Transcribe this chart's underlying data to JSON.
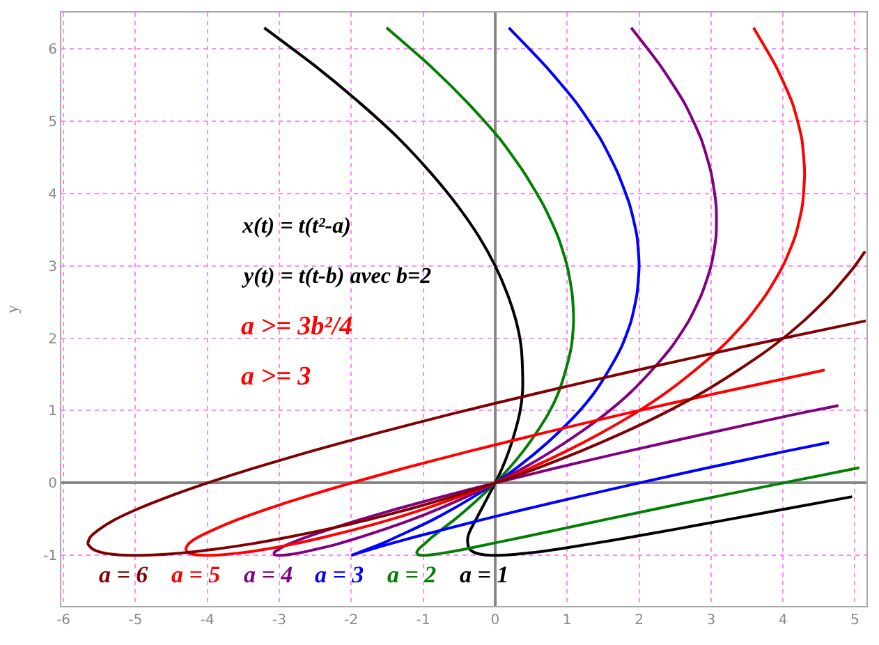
{
  "chart_data": {
    "type": "line",
    "ylabel": "y",
    "annotations": [
      "x(t) = t(t²-a)",
      "y(t) = t(t-b) avec b=2",
      "a >= 3b²/4",
      "a >= 3"
    ],
    "xlim": [
      -6.03,
      5.16
    ],
    "ylim": [
      -1.7,
      6.5
    ],
    "xticks": [
      -6,
      -5,
      -4,
      -3,
      -2,
      -1,
      0,
      1,
      2,
      3,
      4,
      5
    ],
    "yticks": [
      -1,
      0,
      1,
      2,
      3,
      4,
      5,
      6
    ],
    "grid": true,
    "legend": false,
    "marker": "none",
    "line_style": "solid",
    "series": [
      {
        "name": "a = 1",
        "color": "#000000",
        "x": [
          -3.21,
          -2.5,
          -1.88,
          -1.34,
          -0.9,
          -0.53,
          -0.23,
          0,
          0.17,
          0.29,
          0.36,
          0.38,
          0.38,
          0.34,
          0.27,
          0.19,
          0.1,
          0,
          -0.1,
          -0.19,
          -0.27,
          -0.34,
          -0.38,
          -0.38,
          -0.36,
          -0.29,
          -0.17,
          0,
          0.23,
          0.53,
          0.9,
          1.34,
          1.88,
          2.5,
          3.21,
          4.03,
          4.96
        ],
        "values": [
          6.29,
          5.76,
          5.25,
          4.76,
          4.29,
          3.84,
          3.41,
          3,
          2.61,
          2.24,
          1.89,
          1.56,
          1.25,
          0.96,
          0.69,
          0.44,
          0.21,
          0,
          -0.19,
          -0.36,
          -0.51,
          -0.64,
          -0.75,
          -0.84,
          -0.91,
          -0.96,
          -0.99,
          -1,
          -0.99,
          -0.96,
          -0.91,
          -0.84,
          -0.75,
          -0.64,
          -0.51,
          -0.36,
          -0.19
        ]
      },
      {
        "name": "a = 2",
        "color": "#008000",
        "x": [
          -1.51,
          -0.9,
          -0.38,
          0.06,
          0.4,
          0.67,
          0.87,
          1,
          1.07,
          1.09,
          1.06,
          0.98,
          0.88,
          0.74,
          0.57,
          0.39,
          0.2,
          0,
          -0.2,
          -0.39,
          -0.57,
          -0.74,
          -0.88,
          -0.98,
          -1.06,
          -1.09,
          -1.07,
          -1,
          -0.87,
          -0.67,
          -0.4,
          -0.06,
          0.38,
          0.9,
          1.51,
          2.23,
          3.06,
          4,
          5.06
        ],
        "values": [
          6.29,
          5.76,
          5.25,
          4.76,
          4.29,
          3.84,
          3.41,
          3,
          2.61,
          2.24,
          1.89,
          1.56,
          1.25,
          0.96,
          0.69,
          0.44,
          0.21,
          0,
          -0.19,
          -0.36,
          -0.51,
          -0.64,
          -0.75,
          -0.84,
          -0.91,
          -0.96,
          -0.99,
          -1,
          -0.99,
          -0.96,
          -0.91,
          -0.84,
          -0.75,
          -0.64,
          -0.51,
          -0.36,
          -0.19,
          0,
          0.21
        ]
      },
      {
        "name": "a = 3",
        "color": "#0000ff",
        "x": [
          0.19,
          0.7,
          1.13,
          1.46,
          1.7,
          1.87,
          1.97,
          2,
          1.97,
          1.89,
          1.76,
          1.58,
          1.38,
          1.14,
          0.87,
          0.59,
          0.3,
          0,
          -0.3,
          -0.59,
          -0.87,
          -1.14,
          -1.38,
          -1.58,
          -1.76,
          -1.89,
          -1.97,
          -2,
          -1.97,
          -1.87,
          -1.7,
          -1.46,
          -1.13,
          -0.7,
          -0.19,
          0.43,
          1.16,
          2,
          2.96,
          4.05,
          4.64
        ],
        "values": [
          6.29,
          5.76,
          5.25,
          4.76,
          4.29,
          3.84,
          3.41,
          3,
          2.61,
          2.24,
          1.89,
          1.56,
          1.25,
          0.96,
          0.69,
          0.44,
          0.21,
          0,
          -0.19,
          -0.36,
          -0.51,
          -0.64,
          -0.75,
          -0.84,
          -0.91,
          -0.96,
          -0.99,
          -1,
          -0.99,
          -0.96,
          -0.91,
          -0.84,
          -0.75,
          -0.64,
          -0.51,
          -0.36,
          -0.19,
          0,
          0.21,
          0.44,
          0.56
        ]
      },
      {
        "name": "a = 4",
        "color": "#800080",
        "x": [
          1.89,
          2.3,
          2.63,
          2.86,
          3,
          3.07,
          3.07,
          3,
          2.87,
          2.69,
          2.46,
          2.18,
          1.88,
          1.54,
          1.17,
          0.79,
          0.4,
          0,
          -0.4,
          -0.79,
          -1.17,
          -1.54,
          -1.88,
          -2.18,
          -2.46,
          -2.69,
          -2.87,
          -3,
          -3.07,
          -3.07,
          -3,
          -2.86,
          -2.63,
          -2.3,
          -1.89,
          -1.37,
          -0.74,
          0,
          0.86,
          1.85,
          2.97,
          4.22,
          4.77
        ],
        "values": [
          6.29,
          5.76,
          5.25,
          4.76,
          4.29,
          3.84,
          3.41,
          3,
          2.61,
          2.24,
          1.89,
          1.56,
          1.25,
          0.96,
          0.69,
          0.44,
          0.21,
          0,
          -0.19,
          -0.36,
          -0.51,
          -0.64,
          -0.75,
          -0.84,
          -0.91,
          -0.96,
          -0.99,
          -1,
          -0.99,
          -0.96,
          -0.91,
          -0.84,
          -0.75,
          -0.64,
          -0.51,
          -0.36,
          -0.19,
          0,
          0.21,
          0.44,
          0.69,
          0.96,
          1.07
        ]
      },
      {
        "name": "a = 5",
        "color": "#ff0000",
        "x": [
          3.59,
          3.9,
          4.13,
          4.26,
          4.3,
          4.27,
          4.17,
          4,
          3.77,
          3.49,
          3.16,
          2.78,
          2.38,
          1.94,
          1.47,
          0.99,
          0.5,
          0,
          -0.5,
          -0.99,
          -1.47,
          -1.94,
          -2.38,
          -2.78,
          -3.16,
          -3.49,
          -3.77,
          -4,
          -4.17,
          -4.27,
          -4.3,
          -4.26,
          -4.13,
          -3.9,
          -3.59,
          -3.17,
          -2.64,
          -2,
          -1.24,
          -0.35,
          0.67,
          1.82,
          3.13,
          4.58
        ],
        "values": [
          6.29,
          5.76,
          5.25,
          4.76,
          4.29,
          3.84,
          3.41,
          3,
          2.61,
          2.24,
          1.89,
          1.56,
          1.25,
          0.96,
          0.69,
          0.44,
          0.21,
          0,
          -0.19,
          -0.36,
          -0.51,
          -0.64,
          -0.75,
          -0.84,
          -0.91,
          -0.96,
          -0.99,
          -1,
          -0.99,
          -0.96,
          -0.91,
          -0.84,
          -0.75,
          -0.64,
          -0.51,
          -0.36,
          -0.19,
          0,
          0.21,
          0.44,
          0.69,
          0.96,
          1.25,
          1.56
        ]
      },
      {
        "name": "a = 6",
        "color": "#800000",
        "x": [
          5.14,
          5,
          4.67,
          4.29,
          3.86,
          3.38,
          2.88,
          2.34,
          1.77,
          1.19,
          0.6,
          0,
          -0.6,
          -1.19,
          -1.77,
          -2.34,
          -2.88,
          -3.38,
          -3.86,
          -4.29,
          -4.67,
          -5,
          -5.27,
          -5.47,
          -5.6,
          -5.66,
          -5.63,
          -5.5,
          -5.29,
          -4.97,
          -4.54,
          -4,
          -3.34,
          -2.55,
          -1.63,
          -0.58,
          0.63,
          1.98,
          3.48,
          5.15
        ],
        "values": [
          3.2,
          3,
          2.61,
          2.24,
          1.89,
          1.56,
          1.25,
          0.96,
          0.69,
          0.44,
          0.21,
          0,
          -0.19,
          -0.36,
          -0.51,
          -0.64,
          -0.75,
          -0.84,
          -0.91,
          -0.96,
          -0.99,
          -1,
          -0.99,
          -0.96,
          -0.91,
          -0.84,
          -0.75,
          -0.64,
          -0.51,
          -0.36,
          -0.19,
          0,
          0.21,
          0.44,
          0.69,
          0.96,
          1.25,
          1.56,
          1.89,
          2.24
        ]
      }
    ]
  }
}
